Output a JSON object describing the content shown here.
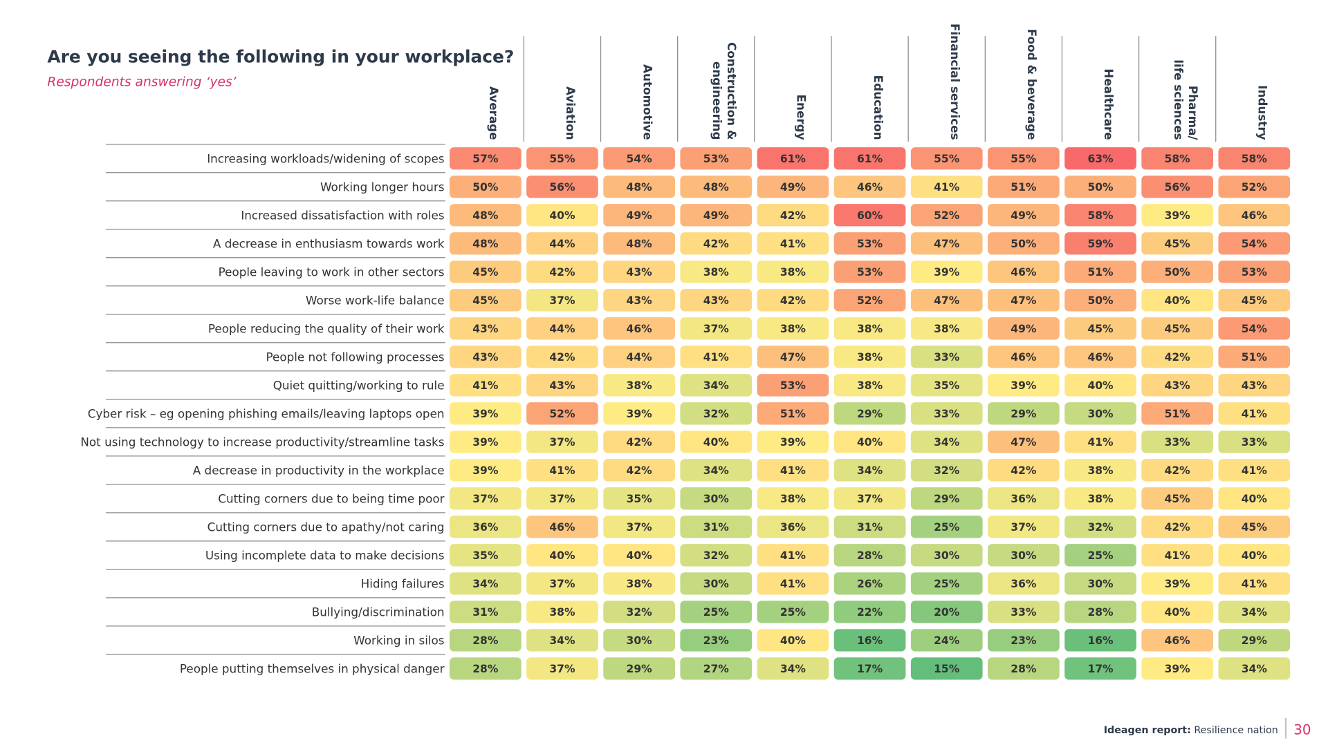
{
  "chart_data": {
    "type": "heatmap",
    "title": "Are you seeing the following in your workplace?",
    "subtitle": "Respondents answering ‘yes’",
    "columns": [
      "Average",
      "Aviation",
      "Automotive",
      [
        "Construction &",
        "engineering"
      ],
      "Energy",
      "Education",
      "Financial services",
      "Food & beverage",
      "Healthcare",
      [
        "Pharma/",
        "life sciences"
      ],
      "Industry"
    ],
    "rows": [
      "Increasing workloads/widening of scopes",
      "Working longer hours",
      "Increased dissatisfaction with roles",
      "A decrease in enthusiasm towards work",
      "People leaving to work in other sectors",
      "Worse work-life balance",
      "People reducing the quality of their work",
      "People not following processes",
      "Quiet quitting/working to rule",
      "Cyber risk – eg opening phishing emails/leaving laptops open",
      "Not using technology to increase productivity/streamline tasks",
      "A decrease in productivity in the workplace",
      "Cutting corners due to being time poor",
      "Cutting corners due to apathy/not caring",
      "Using incomplete data to make decisions",
      "Hiding failures",
      "Bullying/discrimination",
      "Working in silos",
      "People putting themselves in physical danger"
    ],
    "values": [
      [
        57,
        55,
        54,
        53,
        61,
        61,
        55,
        55,
        63,
        58,
        58
      ],
      [
        50,
        56,
        48,
        48,
        49,
        46,
        41,
        51,
        50,
        56,
        52
      ],
      [
        48,
        40,
        49,
        49,
        42,
        60,
        52,
        49,
        58,
        39,
        46
      ],
      [
        48,
        44,
        48,
        42,
        41,
        53,
        47,
        50,
        59,
        45,
        54
      ],
      [
        45,
        42,
        43,
        38,
        38,
        53,
        39,
        46,
        51,
        50,
        53
      ],
      [
        45,
        37,
        43,
        43,
        42,
        52,
        47,
        47,
        50,
        40,
        45
      ],
      [
        43,
        44,
        46,
        37,
        38,
        38,
        38,
        49,
        45,
        45,
        54
      ],
      [
        43,
        42,
        44,
        41,
        47,
        38,
        33,
        46,
        46,
        42,
        51
      ],
      [
        41,
        43,
        38,
        34,
        53,
        38,
        35,
        39,
        40,
        43,
        43
      ],
      [
        39,
        52,
        39,
        32,
        51,
        29,
        33,
        29,
        30,
        51,
        41
      ],
      [
        39,
        37,
        42,
        40,
        39,
        40,
        34,
        47,
        41,
        33,
        33
      ],
      [
        39,
        41,
        42,
        34,
        41,
        34,
        32,
        42,
        38,
        42,
        41
      ],
      [
        37,
        37,
        35,
        30,
        38,
        37,
        29,
        36,
        38,
        45,
        40
      ],
      [
        36,
        46,
        37,
        31,
        36,
        31,
        25,
        37,
        32,
        42,
        45
      ],
      [
        35,
        40,
        40,
        32,
        41,
        28,
        30,
        30,
        25,
        41,
        40
      ],
      [
        34,
        37,
        38,
        30,
        41,
        26,
        25,
        36,
        30,
        39,
        41
      ],
      [
        31,
        38,
        32,
        25,
        25,
        22,
        20,
        33,
        28,
        40,
        34
      ],
      [
        28,
        34,
        30,
        23,
        40,
        16,
        24,
        23,
        16,
        46,
        29
      ],
      [
        28,
        37,
        29,
        27,
        34,
        17,
        15,
        28,
        17,
        39,
        34
      ]
    ],
    "value_labels": [
      [
        "57%",
        "55%",
        "54%",
        "53%",
        "61%",
        "61%",
        "55%",
        "55%",
        "63%",
        "58%",
        "58%"
      ],
      [
        "50%",
        "56%",
        "48%",
        "48%",
        "49%",
        "46%",
        "41%",
        "51%",
        "50%",
        "56%",
        "52%"
      ],
      [
        "48%",
        "40%",
        "49%",
        "49%",
        "42%",
        "60%",
        "52%",
        "49%",
        "58%",
        "39%",
        "46%"
      ],
      [
        "48%",
        "44%",
        "48%",
        "42%",
        "41%",
        "53%",
        "47%",
        "50%",
        "59%",
        "45%",
        "54%"
      ],
      [
        "45%",
        "42%",
        "43%",
        "38%",
        "38%",
        "53%",
        "39%",
        "46%",
        "51%",
        "50%",
        "53%"
      ],
      [
        "45%",
        "37%",
        "43%",
        "43%",
        "42%",
        "52%",
        "47%",
        "47%",
        "50%",
        "40%",
        "45%"
      ],
      [
        "43%",
        "44%",
        "46%",
        "37%",
        "38%",
        "38%",
        "38%",
        "49%",
        "45%",
        "45%",
        "54%"
      ],
      [
        "43%",
        "42%",
        "44%",
        "41%",
        "47%",
        "38%",
        "33%",
        "46%",
        "46%",
        "42%",
        "51%"
      ],
      [
        "41%",
        "43%",
        "38%",
        "34%",
        "53%",
        "38%",
        "35%",
        "39%",
        "40%",
        "43%",
        "43%"
      ],
      [
        "39%",
        "52%",
        "39%",
        "32%",
        "51%",
        "29%",
        "33%",
        "29%",
        "30%",
        "51%",
        "41%"
      ],
      [
        "39%",
        "37%",
        "42%",
        "40%",
        "39%",
        "40%",
        "34%",
        "47%",
        "41%",
        "33%",
        "33%"
      ],
      [
        "39%",
        "41%",
        "42%",
        "34%",
        "41%",
        "34%",
        "32%",
        "42%",
        "38%",
        "42%",
        "41%"
      ],
      [
        "37%",
        "37%",
        "35%",
        "30%",
        "38%",
        "37%",
        "29%",
        "36%",
        "38%",
        "45%",
        "40%"
      ],
      [
        "36%",
        "46%",
        "37%",
        "31%",
        "36%",
        "31%",
        "25%",
        "37%",
        "32%",
        "42%",
        "45%"
      ],
      [
        "35%",
        "40%",
        "40%",
        "32%",
        "41%",
        "28%",
        "30%",
        "30%",
        "25%",
        "41%",
        "40%"
      ],
      [
        "34%",
        "37%",
        "38%",
        "30%",
        "41%",
        "26%",
        "25%",
        "36%",
        "30%",
        "39%",
        "41%"
      ],
      [
        "31%",
        "38%",
        "32%",
        "25%",
        "25%",
        "22%",
        "20%",
        "33%",
        "28%",
        "40%",
        "34%"
      ],
      [
        "28%",
        "34%",
        "30%",
        "23%",
        "40%",
        "16%",
        "24%",
        "23%",
        "16%",
        "46%",
        "29%"
      ],
      [
        "28%",
        "37%",
        "29%",
        "27%",
        "34%",
        "17%",
        "15%",
        "28%",
        "17%",
        "39%",
        "34%"
      ]
    ],
    "colorscale": [
      "#63be7b",
      "#ffeb84",
      "#f8696b"
    ]
  },
  "footer": {
    "report_label": "Ideagen report:",
    "report_name": "Resilience nation",
    "page": "30"
  }
}
